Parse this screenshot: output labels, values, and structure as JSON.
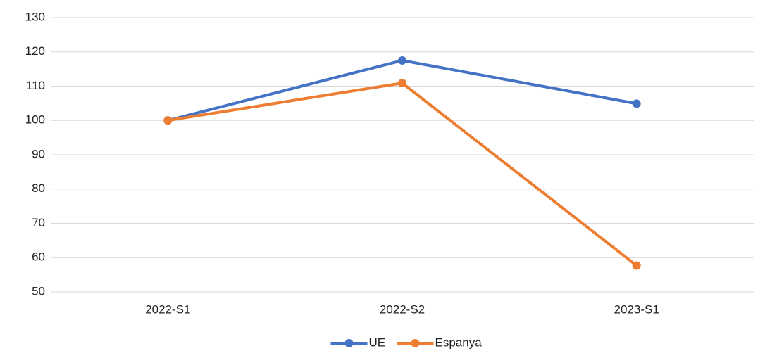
{
  "chart_data": {
    "type": "line",
    "categories": [
      "2022-S1",
      "2022-S2",
      "2023-S1"
    ],
    "series": [
      {
        "name": "UE",
        "color": "#4472c4",
        "values": [
          100,
          117.5,
          104.9
        ]
      },
      {
        "name": "Espanya",
        "color": "#ed7d31",
        "values": [
          100,
          110.9,
          57.7
        ]
      }
    ],
    "ylim": [
      50,
      130
    ],
    "yticks": [
      50,
      60,
      70,
      80,
      90,
      100,
      110,
      120,
      130
    ],
    "grid": true,
    "legend": "bottom"
  }
}
